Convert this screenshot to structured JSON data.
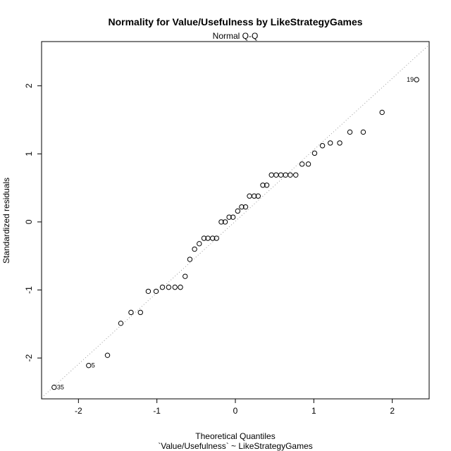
{
  "chart_data": {
    "type": "scatter",
    "title": "Normality for Value/Usefulness by LikeStrategyGames",
    "subtitle": "Normal Q-Q",
    "xlabel": "Theoretical Quantiles",
    "xlabel2": "`Value/Usefulness` ~ LikeStrategyGames",
    "ylabel": "Standardized residuals",
    "xlim": [
      -2.47,
      2.47
    ],
    "ylim": [
      -2.6,
      2.65
    ],
    "xticks": [
      -2,
      -1,
      0,
      1,
      2
    ],
    "yticks": [
      -2,
      -1,
      0,
      1,
      2
    ],
    "grid": false,
    "reference_line": {
      "slope": 1.05,
      "intercept": 0.01
    },
    "points": [
      {
        "x": -2.31,
        "y": -2.43,
        "label": "35"
      },
      {
        "x": -1.87,
        "y": -2.11,
        "label": "5"
      },
      {
        "x": -1.63,
        "y": -1.96
      },
      {
        "x": -1.46,
        "y": -1.49
      },
      {
        "x": -1.33,
        "y": -1.33
      },
      {
        "x": -1.21,
        "y": -1.33
      },
      {
        "x": -1.11,
        "y": -1.02
      },
      {
        "x": -1.01,
        "y": -1.02
      },
      {
        "x": -0.93,
        "y": -0.96
      },
      {
        "x": -0.85,
        "y": -0.96
      },
      {
        "x": -0.77,
        "y": -0.96
      },
      {
        "x": -0.7,
        "y": -0.96
      },
      {
        "x": -0.64,
        "y": -0.8
      },
      {
        "x": -0.58,
        "y": -0.55
      },
      {
        "x": -0.52,
        "y": -0.4
      },
      {
        "x": -0.46,
        "y": -0.32
      },
      {
        "x": -0.4,
        "y": -0.24
      },
      {
        "x": -0.35,
        "y": -0.24
      },
      {
        "x": -0.29,
        "y": -0.24
      },
      {
        "x": -0.24,
        "y": -0.24
      },
      {
        "x": -0.18,
        "y": 0.0
      },
      {
        "x": -0.13,
        "y": 0.0
      },
      {
        "x": -0.08,
        "y": 0.07
      },
      {
        "x": -0.03,
        "y": 0.07
      },
      {
        "x": 0.03,
        "y": 0.16
      },
      {
        "x": 0.08,
        "y": 0.22
      },
      {
        "x": 0.13,
        "y": 0.22
      },
      {
        "x": 0.18,
        "y": 0.38
      },
      {
        "x": 0.24,
        "y": 0.38
      },
      {
        "x": 0.29,
        "y": 0.38
      },
      {
        "x": 0.35,
        "y": 0.54
      },
      {
        "x": 0.4,
        "y": 0.54
      },
      {
        "x": 0.46,
        "y": 0.69
      },
      {
        "x": 0.52,
        "y": 0.69
      },
      {
        "x": 0.58,
        "y": 0.69
      },
      {
        "x": 0.64,
        "y": 0.69
      },
      {
        "x": 0.7,
        "y": 0.69
      },
      {
        "x": 0.77,
        "y": 0.69
      },
      {
        "x": 0.85,
        "y": 0.85
      },
      {
        "x": 0.93,
        "y": 0.85
      },
      {
        "x": 1.01,
        "y": 1.01
      },
      {
        "x": 1.11,
        "y": 1.12
      },
      {
        "x": 1.21,
        "y": 1.16
      },
      {
        "x": 1.33,
        "y": 1.16
      },
      {
        "x": 1.46,
        "y": 1.32
      },
      {
        "x": 1.63,
        "y": 1.32
      },
      {
        "x": 1.87,
        "y": 1.61
      },
      {
        "x": 2.31,
        "y": 2.09,
        "label": "19"
      }
    ]
  }
}
